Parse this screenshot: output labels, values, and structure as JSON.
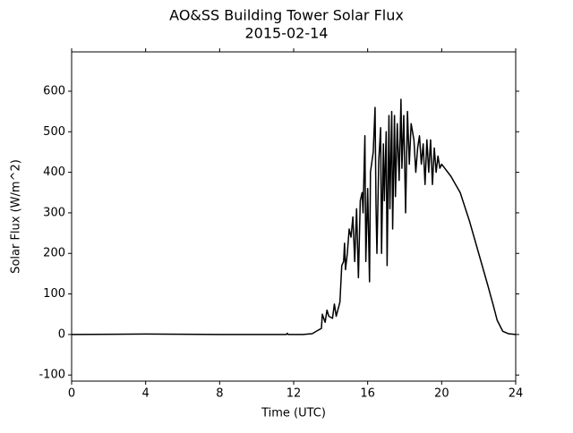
{
  "chart_data": {
    "type": "line",
    "title": "AO&SS Building Tower Solar Flux",
    "subtitle": "2015-02-14",
    "x_label": "Time (UTC)",
    "y_label": "Solar Flux (W/m^2)",
    "xlim": [
      0,
      24
    ],
    "xticks": [
      0,
      4,
      8,
      12,
      16,
      20,
      24
    ],
    "ylim": [
      -115,
      697
    ],
    "yticks": [
      -100,
      0,
      100,
      200,
      300,
      400,
      500,
      600
    ],
    "series": [
      {
        "name": "Solar Flux",
        "color": "#000000",
        "x": [
          0,
          4,
          8,
          11.6,
          11.65,
          11.7,
          12.5,
          13,
          13.3,
          13.5,
          13.55,
          13.7,
          13.8,
          13.9,
          14.1,
          14.2,
          14.3,
          14.5,
          14.6,
          14.7,
          14.75,
          14.8,
          14.9,
          15.0,
          15.1,
          15.2,
          15.3,
          15.4,
          15.5,
          15.6,
          15.7,
          15.75,
          15.85,
          15.9,
          16.0,
          16.1,
          16.15,
          16.3,
          16.4,
          16.45,
          16.5,
          16.6,
          16.7,
          16.75,
          16.85,
          16.9,
          17.0,
          17.05,
          17.15,
          17.2,
          17.3,
          17.35,
          17.45,
          17.5,
          17.6,
          17.7,
          17.8,
          17.85,
          17.95,
          18.05,
          18.15,
          18.25,
          18.35,
          18.5,
          18.6,
          18.7,
          18.8,
          18.9,
          19.0,
          19.1,
          19.2,
          19.3,
          19.4,
          19.5,
          19.6,
          19.7,
          19.8,
          19.9,
          20.0,
          20.5,
          21.0,
          21.5,
          22.0,
          22.5,
          22.8,
          23.0,
          23.3,
          23.6,
          24
        ],
        "values": [
          0,
          1,
          0,
          0,
          3,
          0,
          0,
          2,
          10,
          15,
          50,
          30,
          60,
          45,
          40,
          75,
          45,
          80,
          170,
          180,
          225,
          160,
          200,
          260,
          240,
          290,
          180,
          310,
          140,
          330,
          350,
          300,
          490,
          180,
          360,
          130,
          400,
          450,
          560,
          320,
          200,
          430,
          510,
          200,
          470,
          330,
          500,
          170,
          540,
          310,
          550,
          260,
          540,
          340,
          520,
          380,
          580,
          410,
          540,
          300,
          550,
          420,
          520,
          480,
          400,
          460,
          490,
          420,
          470,
          370,
          480,
          400,
          480,
          370,
          460,
          400,
          440,
          410,
          420,
          390,
          350,
          280,
          200,
          120,
          70,
          35,
          8,
          2,
          0
        ]
      }
    ]
  }
}
